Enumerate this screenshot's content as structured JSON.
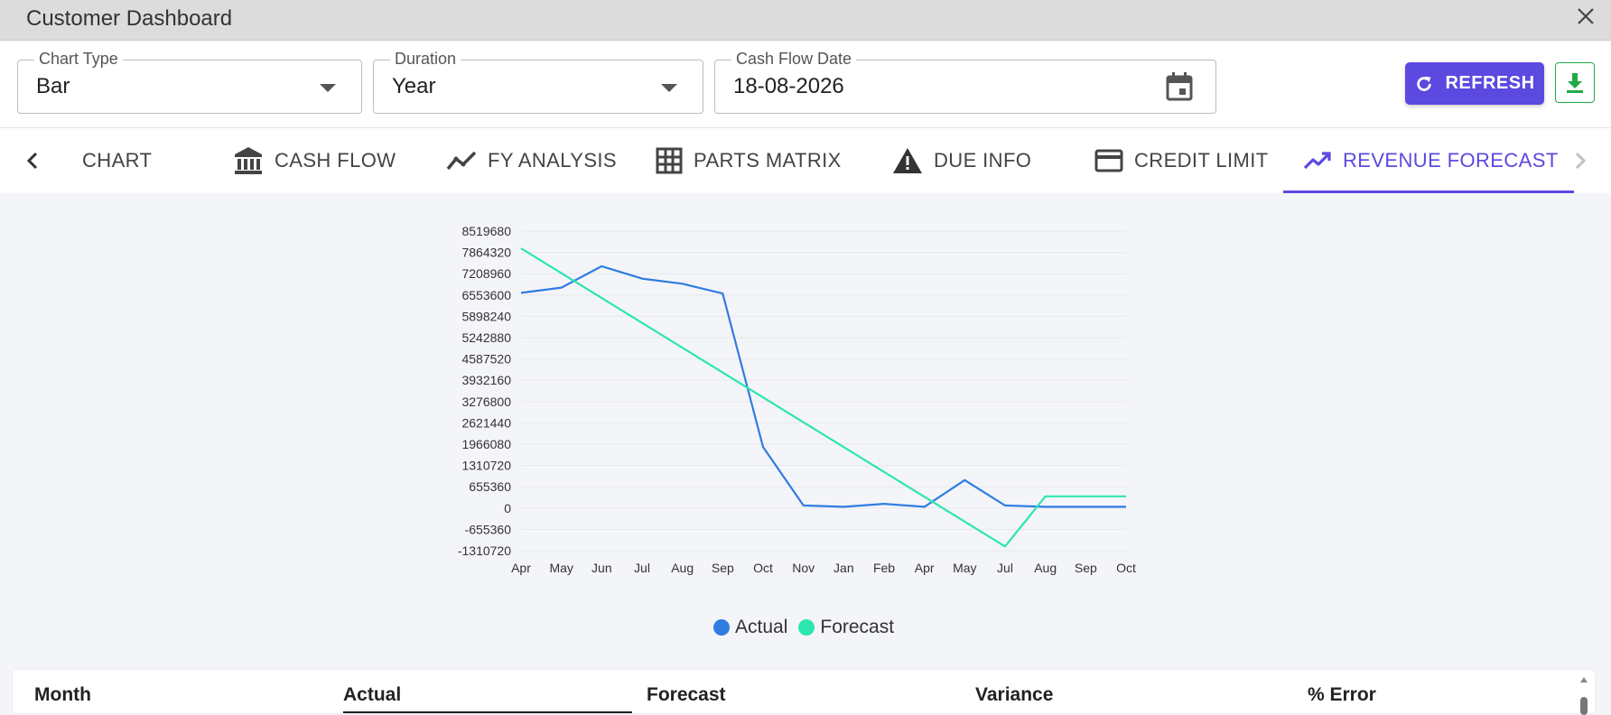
{
  "window": {
    "title": "Customer Dashboard"
  },
  "filters": {
    "chart_type": {
      "label": "Chart Type",
      "value": "Bar"
    },
    "duration": {
      "label": "Duration",
      "value": "Year"
    },
    "cash_flow_date": {
      "label": "Cash Flow Date",
      "value": "18-08-2026"
    }
  },
  "actions": {
    "refresh_label": "REFRESH"
  },
  "tabs": [
    {
      "label": "CHART",
      "icon": "none"
    },
    {
      "label": "CASH FLOW",
      "icon": "bank-icon"
    },
    {
      "label": "FY ANALYSIS",
      "icon": "trend-line-icon"
    },
    {
      "label": "PARTS MATRIX",
      "icon": "grid-icon"
    },
    {
      "label": "DUE INFO",
      "icon": "warning-icon"
    },
    {
      "label": "CREDIT LIMIT",
      "icon": "credit-card-icon"
    },
    {
      "label": "REVENUE FORECAST",
      "icon": "trending-up-icon",
      "active": true
    }
  ],
  "chart_data": {
    "type": "line",
    "categories": [
      "Apr",
      "May",
      "Jun",
      "Jul",
      "Aug",
      "Sep",
      "Oct",
      "Nov",
      "Jan",
      "Feb",
      "Apr",
      "May",
      "Jul",
      "Aug",
      "Sep",
      "Oct"
    ],
    "series": [
      {
        "name": "Actual",
        "color": "#2f7de1",
        "values": [
          6620000,
          6780000,
          7440000,
          7060000,
          6900000,
          6600000,
          1880000,
          80000,
          40000,
          130000,
          40000,
          860000,
          80000,
          40000,
          40000,
          40000
        ]
      },
      {
        "name": "Forecast",
        "color": "#2ee6b0",
        "values": [
          7990000,
          null,
          null,
          null,
          null,
          null,
          null,
          null,
          null,
          null,
          null,
          null,
          -1180000,
          360000,
          360000,
          360000
        ]
      }
    ],
    "y_ticks": [
      8519680,
      7864320,
      7208960,
      6553600,
      5898240,
      5242880,
      4587520,
      3932160,
      3276800,
      2621440,
      1966080,
      1310720,
      655360,
      0,
      -655360,
      -1310720
    ],
    "ylim": [
      -1310720,
      8519680
    ],
    "legend": "bottom-center",
    "grid": true
  },
  "table": {
    "columns": [
      "Month",
      "Actual",
      "Forecast",
      "Variance",
      "% Error"
    ]
  }
}
